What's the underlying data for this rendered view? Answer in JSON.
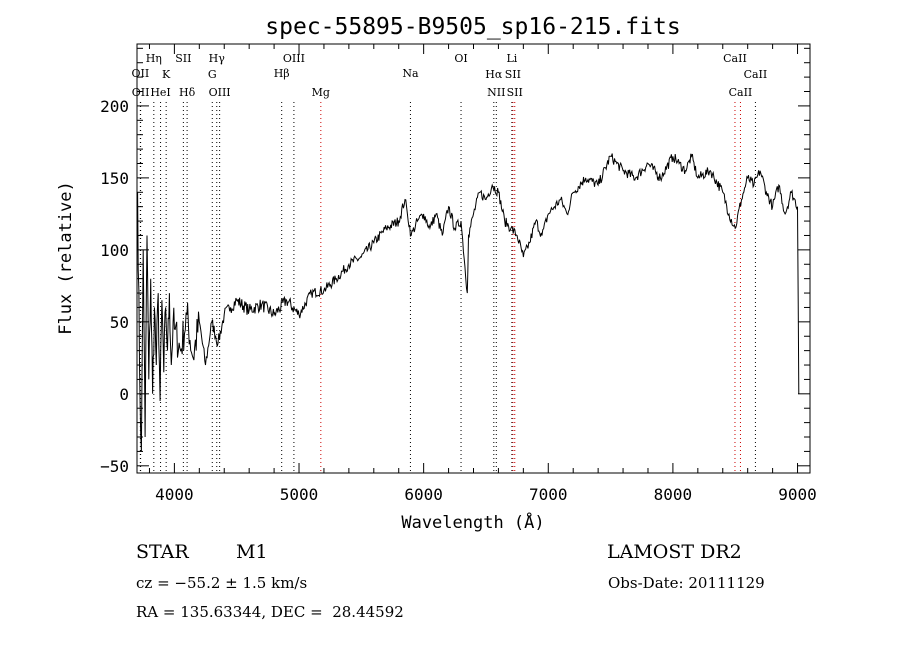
{
  "chart_data": {
    "type": "line",
    "title": "spec-55895-B9505_sp16-215.fits",
    "xlabel": "Wavelength (Å)",
    "ylabel": "Flux (relative)",
    "xlim": [
      3700,
      9100
    ],
    "ylim": [
      -55,
      243
    ],
    "xticks": [
      4000,
      5000,
      6000,
      7000,
      8000,
      9000
    ],
    "yticks": [
      -50,
      0,
      50,
      100,
      150,
      200
    ],
    "grid": false,
    "legend": "none",
    "line_color": "#000000",
    "series": [
      {
        "x": [
          3705,
          3720,
          3735,
          3750,
          3765,
          3780,
          3795,
          3810,
          3825,
          3840,
          3855,
          3870,
          3885,
          3900,
          3915,
          3930,
          3945,
          3960,
          3975,
          3990,
          4000,
          4050,
          4100,
          4150,
          4200,
          4250,
          4300,
          4350,
          4400,
          4450,
          4500,
          4600,
          4700,
          4800,
          4900,
          5000,
          5100,
          5200,
          5300,
          5400,
          5500,
          5600,
          5700,
          5800,
          5850,
          5870,
          5900,
          5950,
          6000,
          6050,
          6100,
          6150,
          6200,
          6250,
          6300,
          6350,
          6360,
          6400,
          6450,
          6500,
          6550,
          6600,
          6650,
          6700,
          6750,
          6800,
          6850,
          6900,
          6950,
          7000,
          7050,
          7100,
          7150,
          7200,
          7300,
          7400,
          7500,
          7550,
          7600,
          7700,
          7800,
          7900,
          8000,
          8050,
          8100,
          8150,
          8200,
          8300,
          8400,
          8450,
          8500,
          8550,
          8600,
          8650,
          8700,
          8750,
          8800,
          8850,
          8900,
          8950,
          9000,
          9010
        ],
        "y": [
          140,
          20,
          -40,
          100,
          -30,
          110,
          10,
          80,
          0,
          60,
          20,
          70,
          -5,
          65,
          15,
          60,
          30,
          70,
          20,
          50,
          45,
          30,
          55,
          25,
          50,
          20,
          50,
          35,
          55,
          60,
          65,
          58,
          62,
          55,
          65,
          55,
          70,
          72,
          80,
          90,
          95,
          105,
          115,
          120,
          135,
          125,
          110,
          120,
          125,
          115,
          125,
          110,
          130,
          115,
          120,
          70,
          110,
          125,
          140,
          135,
          145,
          140,
          120,
          115,
          110,
          95,
          105,
          120,
          110,
          125,
          130,
          135,
          125,
          140,
          150,
          145,
          165,
          160,
          155,
          150,
          160,
          150,
          165,
          160,
          155,
          165,
          150,
          155,
          140,
          125,
          115,
          135,
          150,
          145,
          155,
          140,
          130,
          145,
          125,
          140,
          130,
          0
        ]
      }
    ],
    "lines": [
      {
        "label": "OII",
        "x": 3727,
        "color": "#000000",
        "row": 2
      },
      {
        "label": "OII",
        "x": 3729,
        "color": "#000000",
        "row": 3
      },
      {
        "label": "Hη",
        "x": 3835,
        "color": "#000000",
        "row": 0
      },
      {
        "label": "K",
        "x": 3934,
        "color": "#000000",
        "row": 1
      },
      {
        "label": "HeI",
        "x": 3889,
        "color": "#000000",
        "row": 3
      },
      {
        "label": "SII",
        "x": 4072,
        "color": "#000000",
        "row": 0
      },
      {
        "label": "Hδ",
        "x": 4102,
        "color": "#000000",
        "row": 3
      },
      {
        "label": "Hγ",
        "x": 4340,
        "color": "#000000",
        "row": 0
      },
      {
        "label": "G",
        "x": 4304,
        "color": "#000000",
        "row": 1
      },
      {
        "label": "OIII",
        "x": 4363,
        "color": "#000000",
        "row": 3
      },
      {
        "label": "OIII",
        "x": 4959,
        "color": "#000000",
        "row": 0
      },
      {
        "label": "Hβ",
        "x": 4861,
        "color": "#000000",
        "row": 2
      },
      {
        "label": "Mg",
        "x": 5175,
        "color": "#cc0000",
        "row": 3
      },
      {
        "label": "Na",
        "x": 5894,
        "color": "#000000",
        "row": 2
      },
      {
        "label": "OI",
        "x": 6300,
        "color": "#000000",
        "row": 0
      },
      {
        "label": "Li",
        "x": 6708,
        "color": "#000000",
        "row": 0
      },
      {
        "label": "Hα",
        "x": 6563,
        "color": "#000000",
        "row": 1
      },
      {
        "label": "SII",
        "x": 6716,
        "color": "#cc0000",
        "row": 1
      },
      {
        "label": "NII",
        "x": 6583,
        "color": "#000000",
        "row": 3
      },
      {
        "label": "SII",
        "x": 6731,
        "color": "#cc0000",
        "row": 3
      },
      {
        "label": "CaII",
        "x": 8498,
        "color": "#cc0000",
        "row": 0
      },
      {
        "label": "CaII",
        "x": 8662,
        "color": "#000000",
        "row": 1
      },
      {
        "label": "CaII",
        "x": 8542,
        "color": "#cc0000",
        "row": 3
      }
    ]
  },
  "info": {
    "object_class": "STAR",
    "subclass": "M1",
    "survey": "LAMOST DR2",
    "redshift": "cz = −55.2 ± 1.5 km/s",
    "obs_date": "Obs-Date: 20111129",
    "coords": "RA = 135.63344, DEC =  28.44592"
  }
}
